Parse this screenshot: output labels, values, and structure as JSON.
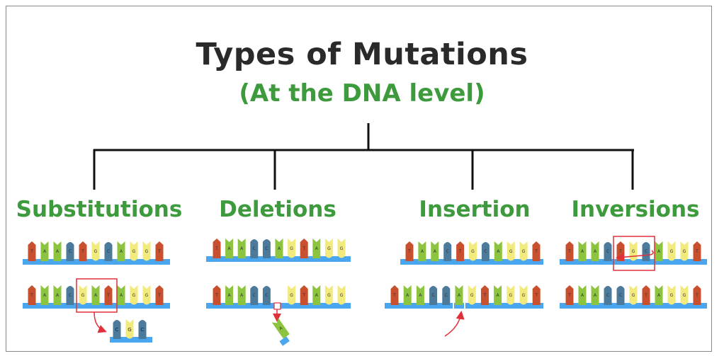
{
  "title": "Types of Mutations",
  "subtitle": "(At the DNA level)",
  "categories": [
    {
      "label": "Substitutions"
    },
    {
      "label": "Deletions"
    },
    {
      "label": "Insertion"
    },
    {
      "label": "Inversions"
    }
  ],
  "colors": {
    "T": "#c8502f",
    "A": "#8dc43f",
    "C": "#4b7a9a",
    "G": "#f2ea7c",
    "backbone": "#4aa6ee",
    "highlight": "#e0303a",
    "heading": "#3d9a3d"
  },
  "strands": {
    "substitutions": {
      "original": "TAACTGCAGGT",
      "mutated": "TAACGATAGGT",
      "removed": "CGC"
    },
    "deletions": {
      "original": "TAACCAGTAGG",
      "mutated": "TAACC_GTAGG",
      "removed": "A"
    },
    "insertion": {
      "original": "TAACTGCAGGT",
      "mutated": "TAACCAGTAGGT"
    },
    "inversions": {
      "original": "TAACTGCAGGT",
      "mutated": "TAACCGTAGGT"
    }
  }
}
